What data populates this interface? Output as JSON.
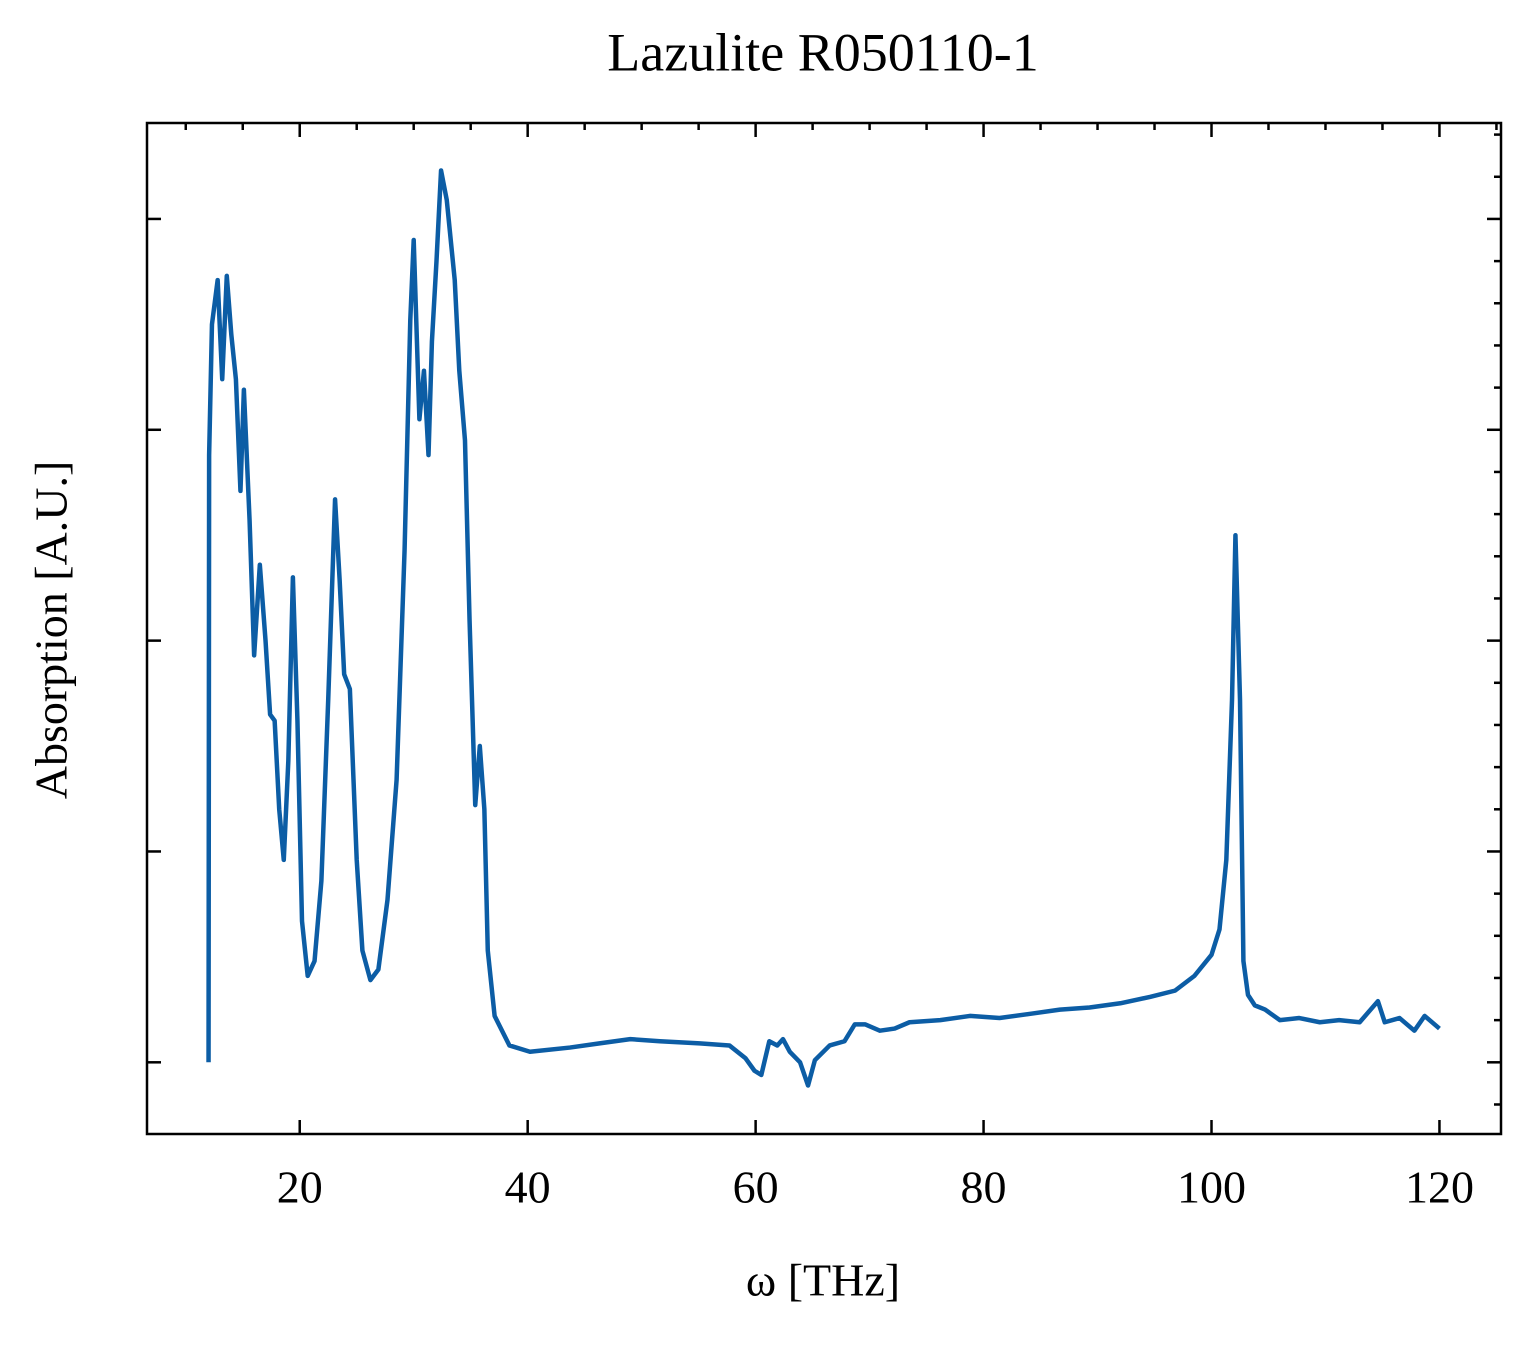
{
  "chart_data": {
    "type": "line",
    "title": "Lazulite R050110-1",
    "x_label": "ω [THz]",
    "y_label": "Absorption [A.U.]",
    "x": [
      12.0,
      12.05,
      12.3,
      12.8,
      13.2,
      13.6,
      14.0,
      14.4,
      14.8,
      15.1,
      15.6,
      16.0,
      16.5,
      17.0,
      17.4,
      17.8,
      18.2,
      18.6,
      19.0,
      19.4,
      19.8,
      20.2,
      20.7,
      21.3,
      21.9,
      22.5,
      23.1,
      23.5,
      23.9,
      24.4,
      25.0,
      25.5,
      26.2,
      26.9,
      27.7,
      28.5,
      29.2,
      29.7,
      30.0,
      30.5,
      30.9,
      31.3,
      31.6,
      32.0,
      32.4,
      32.9,
      33.6,
      34.0,
      34.5,
      34.9,
      35.4,
      35.8,
      36.2,
      36.5,
      37.1,
      38.4,
      40.2,
      43.7,
      46.3,
      49.0,
      51.6,
      55.1,
      57.7,
      59.1,
      59.9,
      60.5,
      61.2,
      61.9,
      62.4,
      63.0,
      63.9,
      64.6,
      65.2,
      66.5,
      67.8,
      68.7,
      69.6,
      70.9,
      72.2,
      73.5,
      76.2,
      78.8,
      81.4,
      84.1,
      86.7,
      89.3,
      92.0,
      94.6,
      96.8,
      98.5,
      100.0,
      100.7,
      101.3,
      101.8,
      102.1,
      102.5,
      102.8,
      103.2,
      103.8,
      104.7,
      106.0,
      107.7,
      109.5,
      111.2,
      113.0,
      114.6,
      115.2,
      116.5,
      117.8,
      118.7,
      120.0
    ],
    "series": [
      {
        "name": "Lazulite R050110-1",
        "color": "#0c5da5",
        "values": [
          0.0,
          2.88,
          3.5,
          3.71,
          3.24,
          3.73,
          3.45,
          3.24,
          2.71,
          3.19,
          2.57,
          1.93,
          2.36,
          2.0,
          1.65,
          1.62,
          1.2,
          0.96,
          1.43,
          2.3,
          1.62,
          0.67,
          0.41,
          0.48,
          0.86,
          1.72,
          2.67,
          2.29,
          1.84,
          1.77,
          0.96,
          0.53,
          0.39,
          0.44,
          0.77,
          1.34,
          2.43,
          3.52,
          3.9,
          3.05,
          3.28,
          2.88,
          3.42,
          3.8,
          4.23,
          4.09,
          3.71,
          3.28,
          2.95,
          2.1,
          1.22,
          1.5,
          1.2,
          0.53,
          0.22,
          0.08,
          0.05,
          0.07,
          0.09,
          0.11,
          0.1,
          0.09,
          0.08,
          0.02,
          -0.04,
          -0.06,
          0.1,
          0.08,
          0.11,
          0.05,
          0.0,
          -0.11,
          0.01,
          0.08,
          0.1,
          0.18,
          0.18,
          0.15,
          0.16,
          0.19,
          0.2,
          0.22,
          0.21,
          0.23,
          0.25,
          0.26,
          0.28,
          0.31,
          0.34,
          0.41,
          0.51,
          0.63,
          0.96,
          1.72,
          2.5,
          1.72,
          0.48,
          0.32,
          0.27,
          0.25,
          0.2,
          0.21,
          0.19,
          0.2,
          0.19,
          0.29,
          0.19,
          0.21,
          0.15,
          0.22,
          0.16
        ]
      }
    ],
    "xlim": [
      6.6,
      125.4
    ],
    "xticks": [
      20,
      40,
      60,
      80,
      100,
      120
    ],
    "xminorticks": [
      10,
      15,
      25,
      30,
      35,
      45,
      50,
      55,
      65,
      70,
      75,
      85,
      90,
      95,
      105,
      110,
      115,
      125
    ],
    "ylim": [
      -0.34,
      4.455
    ],
    "yticks": [
      0,
      1,
      2,
      3,
      4
    ],
    "yminorticks": [
      -0.2,
      0.2,
      0.4,
      0.6,
      0.8,
      1.2,
      1.4,
      1.6,
      1.8,
      2.2,
      2.4,
      2.6,
      2.8,
      3.2,
      3.4,
      3.6,
      3.8,
      4.2,
      4.4
    ],
    "grid": false
  }
}
